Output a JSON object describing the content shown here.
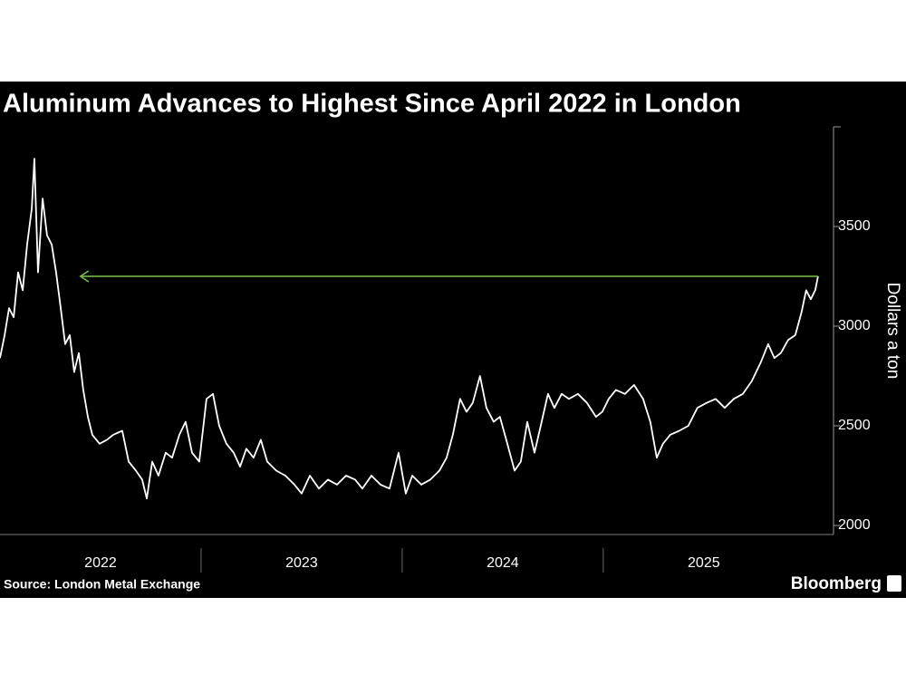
{
  "chart_data": {
    "type": "line",
    "title": "Aluminum Advances to Highest Since April 2022 in London",
    "y_axis_label": "Dollars a ton",
    "source": "Source: London Metal Exchange",
    "brand": "Bloomberg",
    "xlim": [
      2022,
      2026.1
    ],
    "xticks": [
      {
        "value": 2022,
        "label": "2022"
      },
      {
        "value": 2023,
        "label": "2023"
      },
      {
        "value": 2024,
        "label": "2024"
      },
      {
        "value": 2025,
        "label": "2025"
      }
    ],
    "ylim": [
      1950,
      4000
    ],
    "yticks": [
      2000,
      2500,
      3000,
      3500
    ],
    "annotation_arrow": {
      "x": [
        2022.4,
        2026.068
      ],
      "y": 3250,
      "color": "#7cc24f"
    },
    "series": [
      {
        "color": "#ffffff",
        "x": [
          2022.0,
          2022.023,
          2022.045,
          2022.068,
          2022.09,
          2022.113,
          2022.135,
          2022.158,
          2022.171,
          2022.189,
          2022.212,
          2022.234,
          2022.257,
          2022.279,
          2022.302,
          2022.324,
          2022.347,
          2022.369,
          2022.392,
          2022.414,
          2022.437,
          2022.459,
          2022.495,
          2022.532,
          2022.563,
          2022.608,
          2022.64,
          2022.676,
          2022.707,
          2022.73,
          2022.757,
          2022.788,
          2022.824,
          2022.856,
          2022.892,
          2022.923,
          2022.955,
          2022.991,
          2023.027,
          2023.059,
          2023.09,
          2023.126,
          2023.162,
          2023.194,
          2023.225,
          2023.261,
          2023.297,
          2023.329,
          2023.374,
          2023.419,
          2023.464,
          2023.5,
          2023.541,
          2023.586,
          2023.631,
          2023.676,
          2023.721,
          2023.766,
          2023.802,
          2023.847,
          2023.892,
          2023.937,
          2023.982,
          2024.018,
          2024.05,
          2024.095,
          2024.14,
          2024.185,
          2024.221,
          2024.252,
          2024.288,
          2024.32,
          2024.351,
          2024.387,
          2024.419,
          2024.455,
          2024.486,
          2024.523,
          2024.559,
          2024.59,
          2024.622,
          2024.658,
          2024.689,
          2024.725,
          2024.757,
          2024.793,
          2024.829,
          2024.874,
          2024.919,
          2024.964,
          2024.995,
          2025.027,
          2025.063,
          2025.108,
          2025.153,
          2025.198,
          2025.234,
          2025.266,
          2025.297,
          2025.333,
          2025.378,
          2025.423,
          2025.468,
          2025.514,
          2025.559,
          2025.604,
          2025.649,
          2025.694,
          2025.739,
          2025.784,
          2025.82,
          2025.851,
          2025.883,
          2025.919,
          2025.955,
          2025.986,
          2026.009,
          2026.032,
          2026.054,
          2026.068
        ],
        "values": [
          2840,
          2955,
          3090,
          3045,
          3270,
          3180,
          3410,
          3590,
          3840,
          3270,
          3640,
          3455,
          3410,
          3270,
          3090,
          2910,
          2955,
          2770,
          2865,
          2680,
          2545,
          2455,
          2410,
          2430,
          2455,
          2475,
          2320,
          2275,
          2230,
          2135,
          2320,
          2250,
          2365,
          2340,
          2455,
          2520,
          2365,
          2320,
          2635,
          2660,
          2500,
          2410,
          2365,
          2295,
          2385,
          2340,
          2430,
          2320,
          2275,
          2250,
          2205,
          2160,
          2250,
          2185,
          2230,
          2205,
          2250,
          2230,
          2185,
          2250,
          2205,
          2185,
          2365,
          2160,
          2250,
          2205,
          2230,
          2275,
          2340,
          2455,
          2635,
          2570,
          2615,
          2750,
          2590,
          2520,
          2545,
          2410,
          2275,
          2320,
          2520,
          2365,
          2500,
          2660,
          2590,
          2660,
          2635,
          2660,
          2615,
          2545,
          2570,
          2635,
          2680,
          2660,
          2705,
          2635,
          2520,
          2340,
          2410,
          2455,
          2475,
          2500,
          2590,
          2615,
          2635,
          2590,
          2635,
          2660,
          2725,
          2820,
          2910,
          2840,
          2865,
          2930,
          2955,
          3070,
          3180,
          3135,
          3180,
          3250
        ]
      }
    ]
  }
}
